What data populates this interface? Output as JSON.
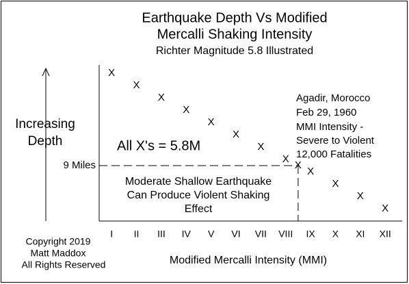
{
  "chart_data": {
    "type": "scatter",
    "title": [
      "Earthquake Depth Vs Modified",
      "Mercalli Shaking Intensity"
    ],
    "subtitle": "Richter Magnitude 5.8 Illustrated",
    "y_label": [
      "Increasing",
      "Depth"
    ],
    "x_label": "Modified Mercalli Intensity (MMI)",
    "marker": "X",
    "x": [
      1,
      2,
      3,
      4,
      5,
      6,
      7,
      8,
      8.5,
      9,
      10,
      11,
      12
    ],
    "values": [
      24,
      22,
      20,
      18,
      16,
      14,
      12,
      10,
      9,
      8,
      6,
      4,
      2
    ],
    "xlim": [
      0.5,
      12.6
    ],
    "ylim": [
      0,
      26
    ],
    "xticks": [
      {
        "value": 1,
        "label": "I"
      },
      {
        "value": 2,
        "label": "II"
      },
      {
        "value": 3,
        "label": "III"
      },
      {
        "value": 4,
        "label": "IV"
      },
      {
        "value": 5,
        "label": "V"
      },
      {
        "value": 6,
        "label": "VI"
      },
      {
        "value": 7,
        "label": "VII"
      },
      {
        "value": 8,
        "label": "VIII"
      },
      {
        "value": 9,
        "label": "IX"
      },
      {
        "value": 10,
        "label": "X"
      },
      {
        "value": 11,
        "label": "XI"
      },
      {
        "value": 12,
        "label": "XII"
      }
    ],
    "reference_line": {
      "value": 9,
      "x_end": 8.5,
      "label": "9 Miles"
    },
    "magnitude_note": "All X's = 5.8M",
    "shallow_note": [
      "Moderate Shallow Earthquake",
      "Can Produce Violent Shaking",
      "Effect"
    ],
    "example_note": [
      "Agadir, Morocco",
      "Feb 29, 1960",
      "MMI Intensity -",
      "Severe to Violent",
      "12,000 Fatalities"
    ],
    "copyright": [
      "Copyright 2019",
      "Matt Maddox",
      "All Rights Reserved"
    ]
  }
}
